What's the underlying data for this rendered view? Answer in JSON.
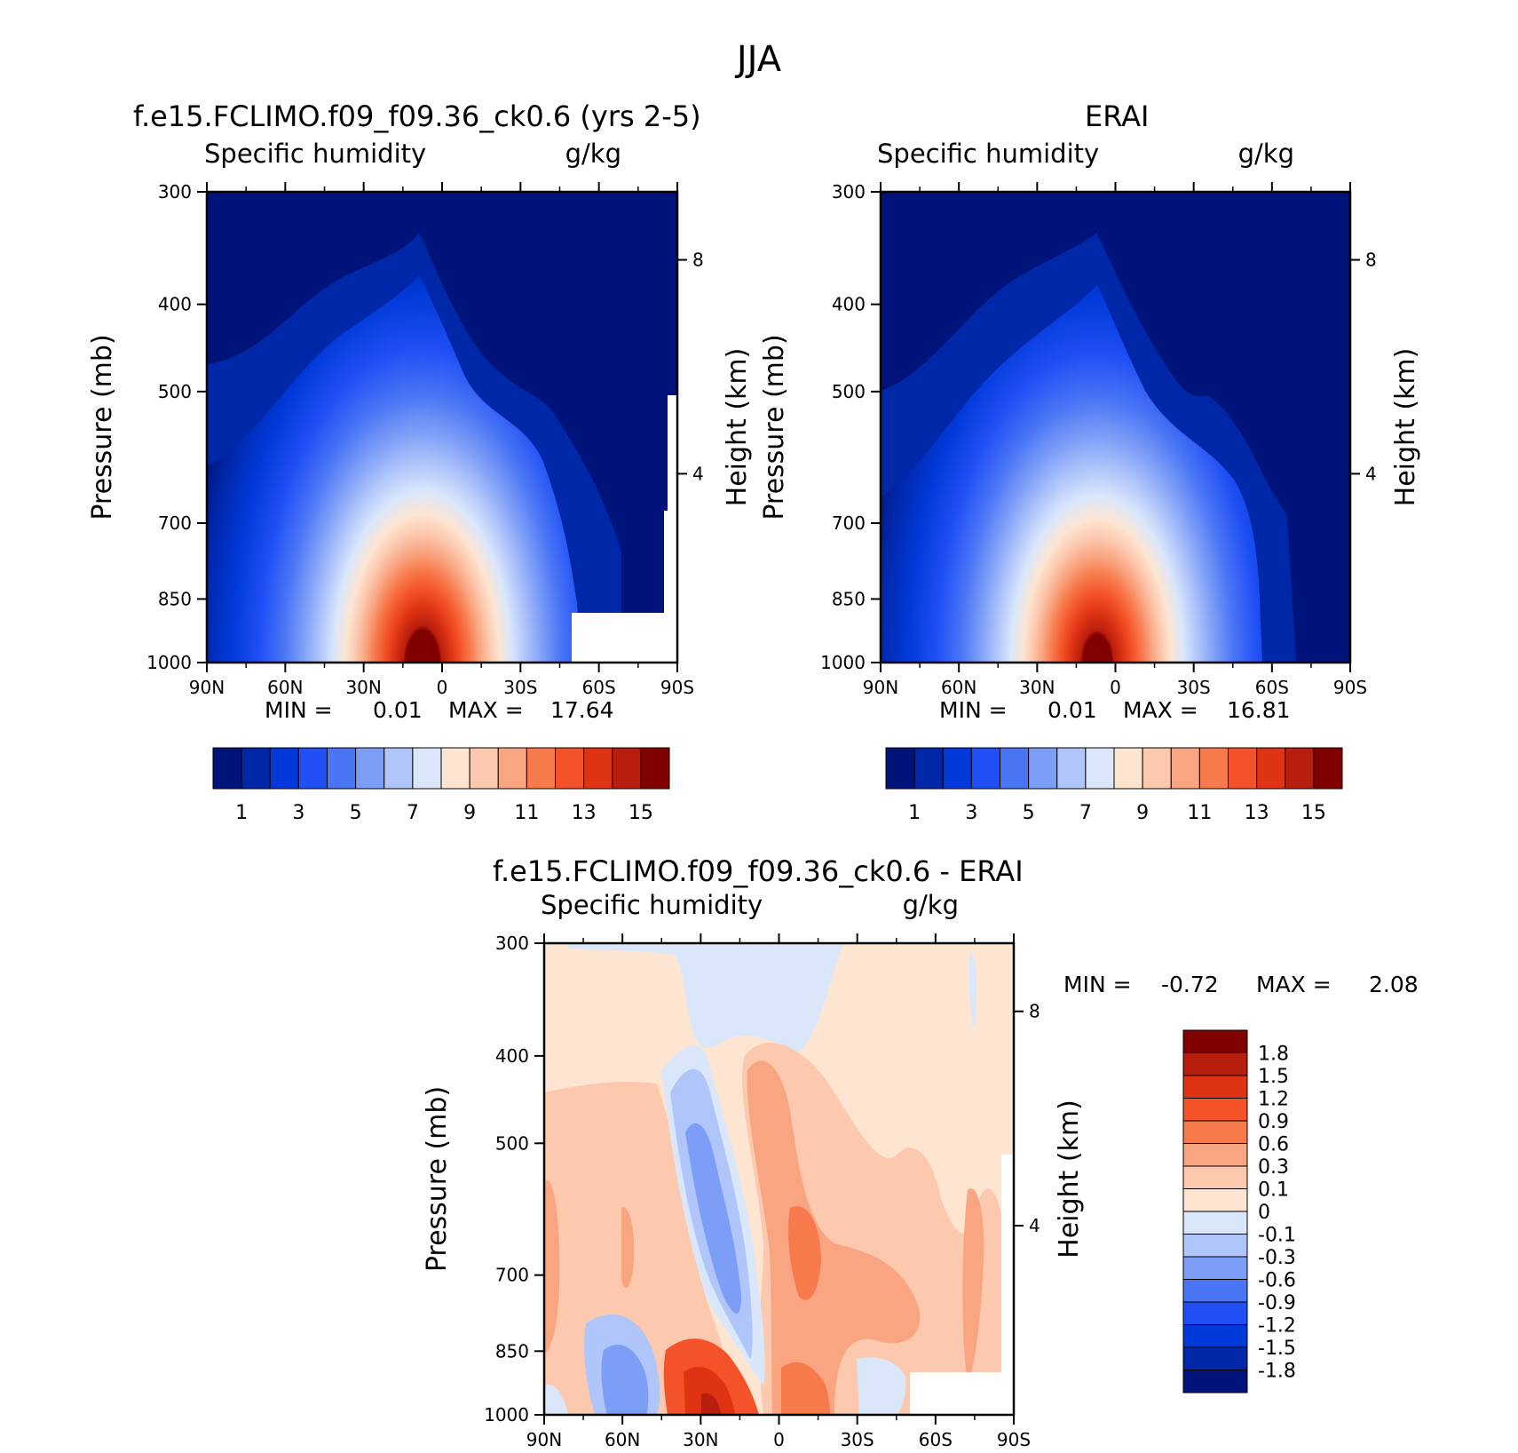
{
  "figure": {
    "title": "JJA"
  },
  "panels": [
    {
      "id": "model",
      "title": "f.e15.FCLIMO.f09_f09.36_ck0.6 (yrs 2-5)",
      "left_label": "Specific humidity",
      "right_label": "g/kg",
      "ylabel": "Pressure (mb)",
      "y2label": "Height (km)",
      "stats": {
        "min_label": "MIN =",
        "min": "0.01",
        "max_label": "MAX =",
        "max": "17.64"
      }
    },
    {
      "id": "obs",
      "title": "ERAI",
      "left_label": "Specific humidity",
      "right_label": "g/kg",
      "ylabel": "Pressure (mb)",
      "y2label": "Height (km)",
      "stats": {
        "min_label": "MIN =",
        "min": "0.01",
        "max_label": "MAX =",
        "max": "16.81"
      }
    },
    {
      "id": "diff",
      "title": "f.e15.FCLIMO.f09_f09.36_ck0.6 - ERAI",
      "left_label": "Specific humidity",
      "right_label": "g/kg",
      "ylabel": "Pressure (mb)",
      "y2label": "Height (km)",
      "stats": {
        "min_label": "MIN =",
        "min": "-0.72",
        "max_label": "MAX =",
        "max": "2.08"
      }
    }
  ],
  "chart_data": [
    {
      "type": "heatmap",
      "subtype": "filled contour, latitude-pressure cross section",
      "title": "f.e15.FCLIMO.f09_f09.36_ck0.6 (yrs 2-5)",
      "variable": "Specific humidity",
      "units": "g/kg",
      "xlabel": "",
      "ylabel": "Pressure (mb)",
      "y2label": "Height (km)",
      "x_ticks": [
        "90N",
        "60N",
        "30N",
        "0",
        "30S",
        "60S",
        "90S"
      ],
      "y_ticks": [
        300,
        400,
        500,
        700,
        850,
        1000
      ],
      "y2_ticks": [
        8,
        4
      ],
      "ylim": [
        1000,
        300
      ],
      "xlim": [
        90,
        -90
      ],
      "min": 0.01,
      "max": 17.64,
      "peak": {
        "lat": 8,
        "p": 1000,
        "value": 17.64
      },
      "colorbar": {
        "labels": [
          "1",
          "3",
          "5",
          "7",
          "9",
          "11",
          "13",
          "15"
        ],
        "levels": [
          1,
          2,
          3,
          4,
          5,
          6,
          7,
          8,
          9,
          10,
          11,
          12,
          13,
          14,
          15
        ]
      }
    },
    {
      "type": "heatmap",
      "subtype": "filled contour, latitude-pressure cross section",
      "title": "ERAI",
      "variable": "Specific humidity",
      "units": "g/kg",
      "xlabel": "",
      "ylabel": "Pressure (mb)",
      "y2label": "Height (km)",
      "x_ticks": [
        "90N",
        "60N",
        "30N",
        "0",
        "30S",
        "60S",
        "90S"
      ],
      "y_ticks": [
        300,
        400,
        500,
        700,
        850,
        1000
      ],
      "y2_ticks": [
        8,
        4
      ],
      "ylim": [
        1000,
        300
      ],
      "xlim": [
        90,
        -90
      ],
      "min": 0.01,
      "max": 16.81,
      "peak": {
        "lat": 8,
        "p": 1000,
        "value": 16.81
      },
      "colorbar": {
        "labels": [
          "1",
          "3",
          "5",
          "7",
          "9",
          "11",
          "13",
          "15"
        ],
        "levels": [
          1,
          2,
          3,
          4,
          5,
          6,
          7,
          8,
          9,
          10,
          11,
          12,
          13,
          14,
          15
        ]
      }
    },
    {
      "type": "heatmap",
      "subtype": "filled contour, difference",
      "title": "f.e15.FCLIMO.f09_f09.36_ck0.6 - ERAI",
      "variable": "Specific humidity",
      "units": "g/kg",
      "xlabel": "",
      "ylabel": "Pressure (mb)",
      "y2label": "Height (km)",
      "x_ticks": [
        "90N",
        "60N",
        "30N",
        "0",
        "30S",
        "60S",
        "90S"
      ],
      "y_ticks": [
        300,
        400,
        500,
        700,
        850,
        1000
      ],
      "y2_ticks": [
        8,
        4
      ],
      "ylim": [
        1000,
        300
      ],
      "xlim": [
        90,
        -90
      ],
      "min": -0.72,
      "max": 2.08,
      "colorbar": {
        "labels": [
          "1.8",
          "1.5",
          "1.2",
          "0.9",
          "0.6",
          "0.3",
          "0.1",
          "0",
          "-0.1",
          "-0.3",
          "-0.6",
          "-0.9",
          "-1.2",
          "-1.5",
          "-1.8"
        ]
      }
    }
  ],
  "colors": {
    "seq": [
      "#00137a",
      "#0027a8",
      "#0039d9",
      "#1f4ff5",
      "#4a75f5",
      "#7d9ef7",
      "#b0c5fa",
      "#dae7fb",
      "#fde5d2",
      "#fcc9ae",
      "#f9a582",
      "#f77a4c",
      "#f4532a",
      "#de3414",
      "#b81e0e",
      "#810000"
    ],
    "div": [
      "#810000",
      "#b81e0e",
      "#de3414",
      "#f4532a",
      "#f77a4c",
      "#f9a582",
      "#fcc9ae",
      "#fde5d2",
      "#dae7fb",
      "#b0c5fa",
      "#7d9ef7",
      "#4a75f5",
      "#1f4ff5",
      "#0039d9",
      "#0027a8",
      "#00137a"
    ]
  }
}
